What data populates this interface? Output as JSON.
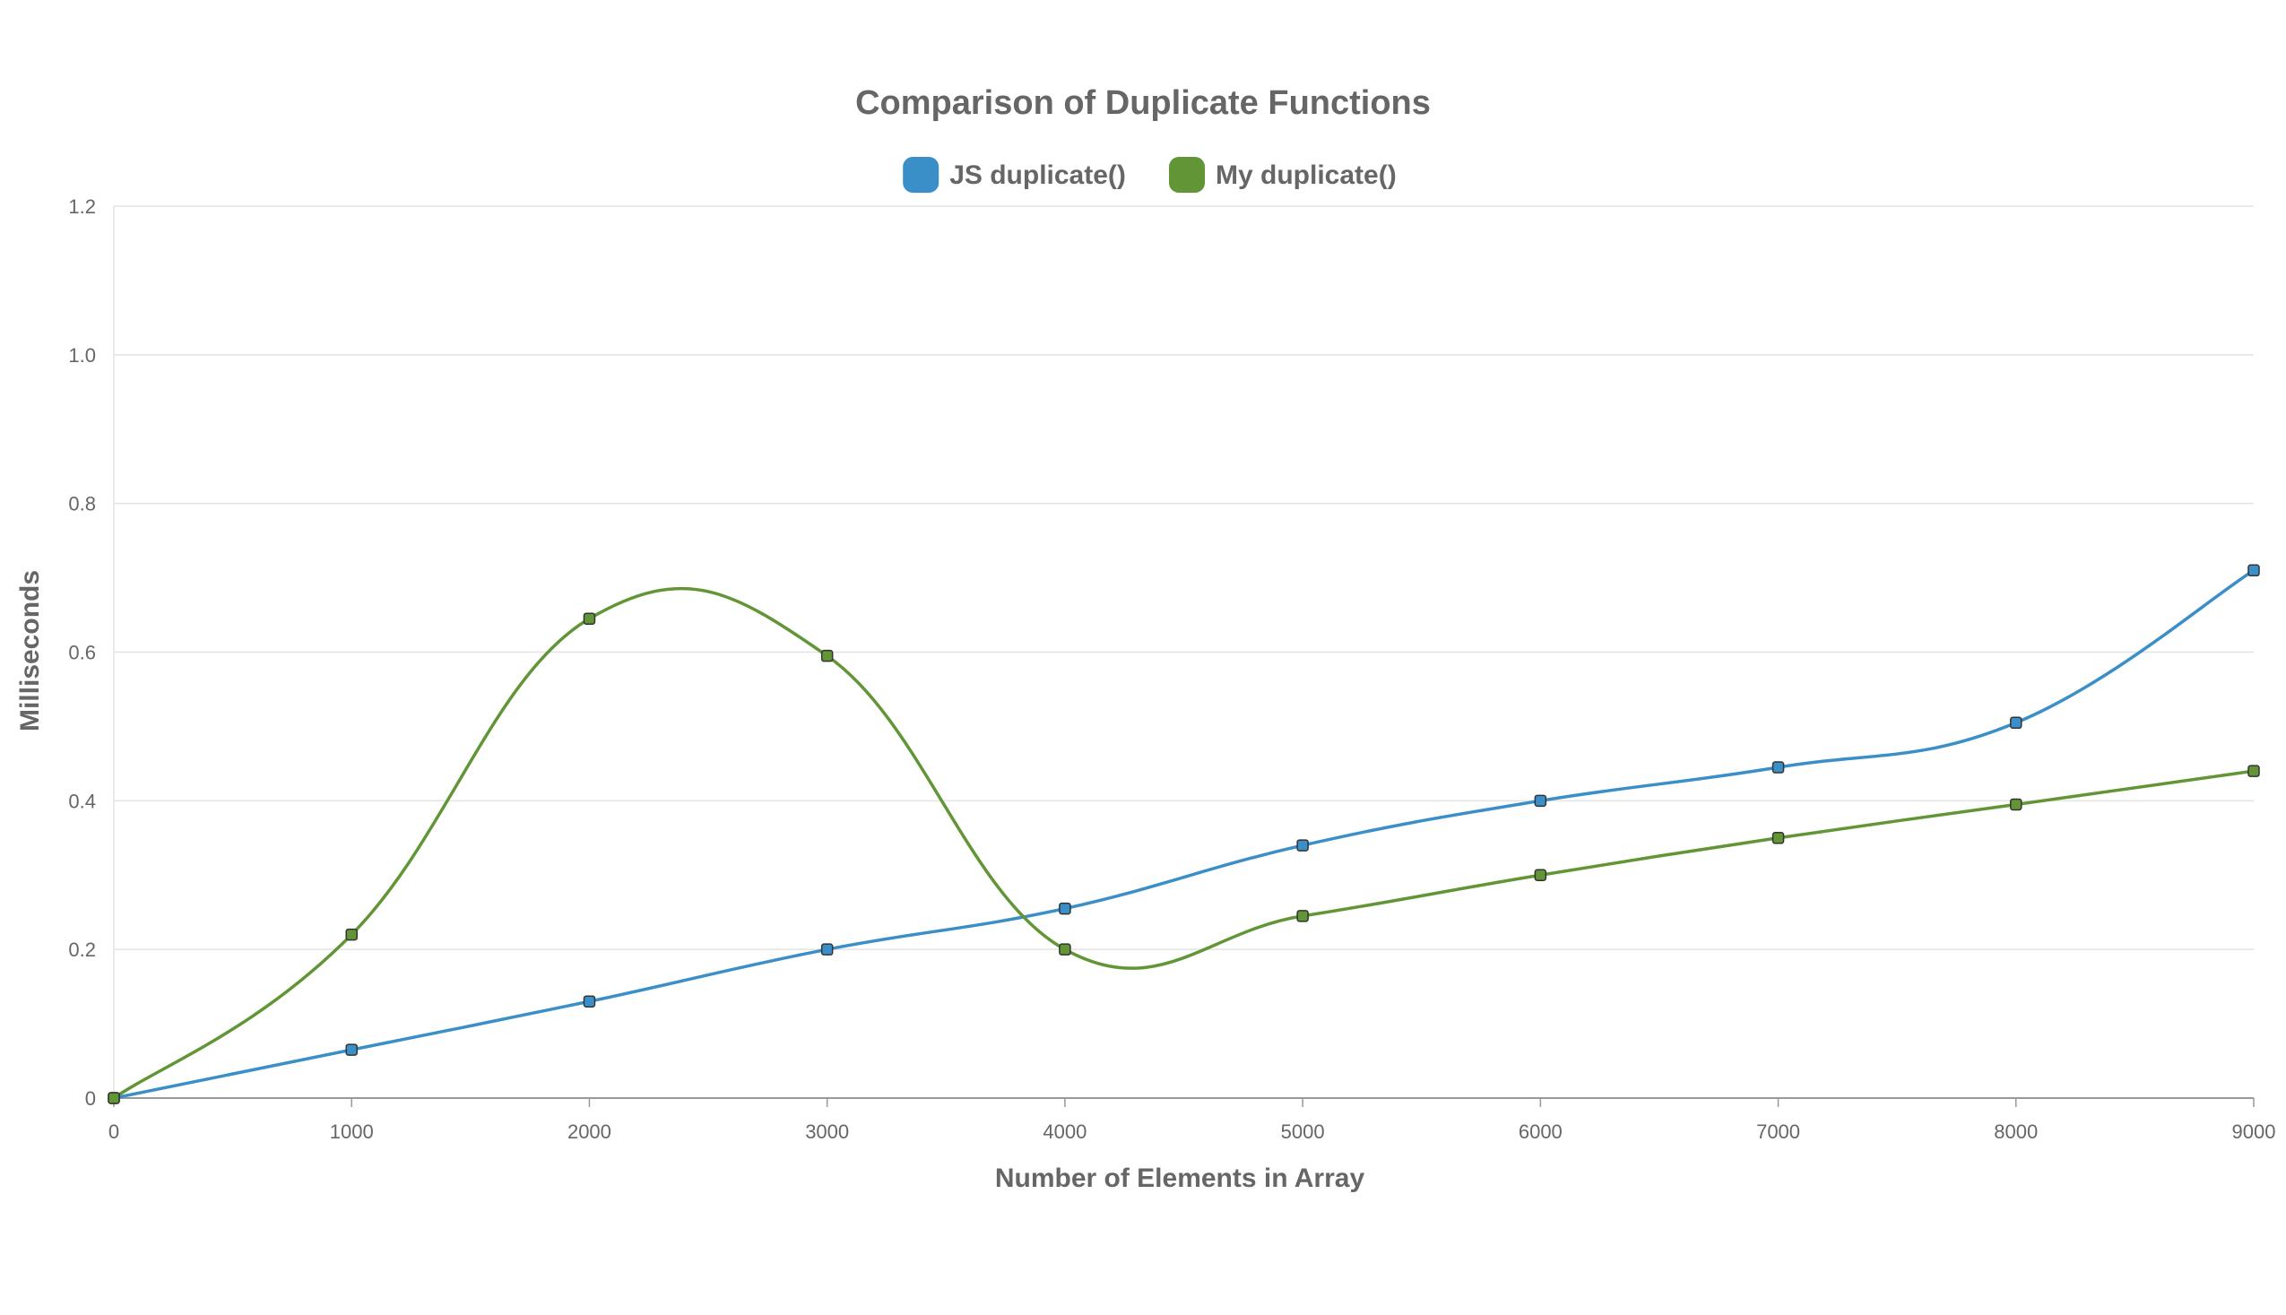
{
  "chart_data": {
    "type": "line",
    "title": "Comparison of Duplicate Functions",
    "xlabel": "Number of Elements in Array",
    "ylabel": "Milliseconds",
    "x": [
      0,
      1000,
      2000,
      3000,
      4000,
      5000,
      6000,
      7000,
      8000,
      9000
    ],
    "xlim": [
      0,
      9000
    ],
    "ylim": [
      0,
      1.2
    ],
    "xticks": [
      "0",
      "1000",
      "2000",
      "3000",
      "4000",
      "5000",
      "6000",
      "7000",
      "8000",
      "9000"
    ],
    "yticks": [
      "0",
      "0.2",
      "0.4",
      "0.6",
      "0.8",
      "1.0",
      "1.2"
    ],
    "grid": true,
    "legend_position": "top",
    "smooth": true,
    "series": [
      {
        "name": "JS duplicate()",
        "color": "#3a8fc8",
        "values": [
          0,
          0.065,
          0.13,
          0.2,
          0.255,
          0.34,
          0.4,
          0.445,
          0.505,
          0.71
        ]
      },
      {
        "name": "My duplicate()",
        "color": "#629535",
        "values": [
          0,
          0.22,
          0.645,
          0.595,
          0.2,
          0.245,
          0.3,
          0.35,
          0.395,
          0.44
        ]
      }
    ]
  }
}
